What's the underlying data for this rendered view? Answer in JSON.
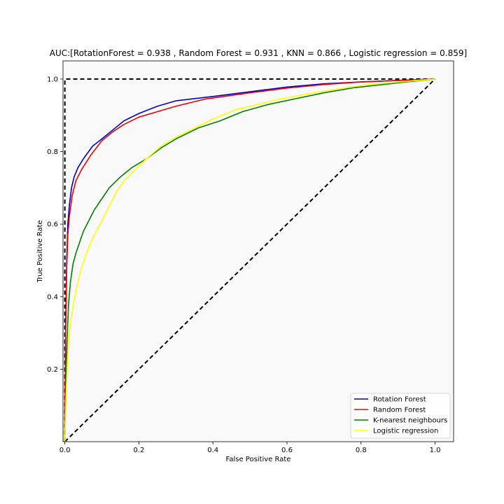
{
  "chart_data": {
    "type": "line",
    "title": "AUC:[RotationForest = 0.938 , Random Forest = 0.931 , KNN = 0.866 , Logistic regression = 0.859]",
    "xlabel": "False Positive Rate",
    "ylabel": "True Positive Rate",
    "xlim": [
      -0.005,
      1.05
    ],
    "ylim": [
      0.0,
      1.05
    ],
    "xticks": [
      "0.0",
      "0.2",
      "0.4",
      "0.6",
      "0.8",
      "1.0"
    ],
    "yticks": [
      "0.2",
      "0.4",
      "0.6",
      "0.8",
      "1.0"
    ],
    "grid": false,
    "legend_position": "lower-right",
    "plot_background": "#f9f9f9",
    "reference_lines": [
      {
        "style": "dashed",
        "color": "#000000",
        "x": [
          0,
          1
        ],
        "y": [
          0,
          1
        ]
      },
      {
        "style": "dashed",
        "color": "#000000",
        "x": [
          0,
          0,
          1
        ],
        "y": [
          0,
          1,
          1
        ]
      }
    ],
    "series": [
      {
        "name": "Rotation Forest",
        "color": "#0000cc",
        "x": [
          0,
          0.002,
          0.005,
          0.008,
          0.012,
          0.018,
          0.025,
          0.035,
          0.05,
          0.075,
          0.1,
          0.13,
          0.16,
          0.2,
          0.25,
          0.3,
          0.4,
          0.5,
          0.6,
          0.7,
          0.8,
          0.9,
          1.0
        ],
        "y": [
          0,
          0.3,
          0.5,
          0.6,
          0.65,
          0.7,
          0.73,
          0.755,
          0.78,
          0.815,
          0.835,
          0.86,
          0.885,
          0.905,
          0.925,
          0.94,
          0.952,
          0.965,
          0.978,
          0.987,
          0.992,
          0.996,
          1.0
        ]
      },
      {
        "name": "Random Forest",
        "color": "#ee0000",
        "x": [
          0,
          0.002,
          0.005,
          0.008,
          0.012,
          0.02,
          0.03,
          0.045,
          0.07,
          0.1,
          0.13,
          0.16,
          0.2,
          0.25,
          0.3,
          0.38,
          0.5,
          0.6,
          0.7,
          0.8,
          0.9,
          1.0
        ],
        "y": [
          0,
          0.3,
          0.48,
          0.57,
          0.62,
          0.68,
          0.72,
          0.75,
          0.79,
          0.83,
          0.855,
          0.875,
          0.895,
          0.91,
          0.925,
          0.945,
          0.962,
          0.975,
          0.985,
          0.992,
          0.996,
          1.0
        ]
      },
      {
        "name": "K-nearest neighbours",
        "color": "#008000",
        "x": [
          0,
          0.003,
          0.006,
          0.01,
          0.015,
          0.022,
          0.03,
          0.04,
          0.05,
          0.065,
          0.08,
          0.1,
          0.12,
          0.15,
          0.18,
          0.22,
          0.26,
          0.3,
          0.36,
          0.42,
          0.48,
          0.55,
          0.62,
          0.7,
          0.78,
          0.86,
          0.93,
          1.0
        ],
        "y": [
          0,
          0.15,
          0.28,
          0.38,
          0.44,
          0.49,
          0.52,
          0.55,
          0.58,
          0.61,
          0.64,
          0.67,
          0.7,
          0.73,
          0.755,
          0.78,
          0.81,
          0.835,
          0.865,
          0.885,
          0.91,
          0.93,
          0.945,
          0.962,
          0.976,
          0.985,
          0.993,
          1.0
        ]
      },
      {
        "name": "Logistic regression",
        "color": "#ffff00",
        "x": [
          0,
          0.003,
          0.007,
          0.012,
          0.018,
          0.025,
          0.033,
          0.042,
          0.055,
          0.07,
          0.085,
          0.1,
          0.12,
          0.14,
          0.16,
          0.19,
          0.22,
          0.26,
          0.3,
          0.35,
          0.4,
          0.46,
          0.52,
          0.58,
          0.65,
          0.72,
          0.8,
          0.88,
          0.95,
          1.0
        ],
        "y": [
          0,
          0.12,
          0.22,
          0.3,
          0.35,
          0.39,
          0.43,
          0.47,
          0.51,
          0.55,
          0.58,
          0.61,
          0.65,
          0.69,
          0.72,
          0.75,
          0.78,
          0.815,
          0.84,
          0.865,
          0.89,
          0.915,
          0.93,
          0.945,
          0.958,
          0.97,
          0.982,
          0.99,
          0.996,
          1.0
        ]
      }
    ]
  }
}
